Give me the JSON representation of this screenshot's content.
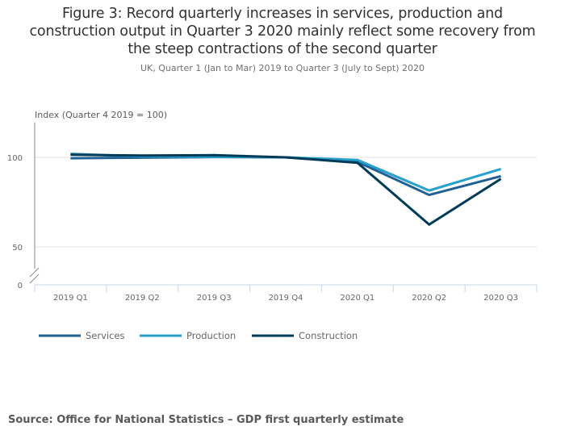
{
  "chart_data": {
    "type": "line",
    "title": "Figure 3: Record quarterly increases in services, production and construction output in Quarter 3 2020 mainly reflect some recovery from the steep contractions of the second quarter",
    "title_lines": [
      "Figure 3: Record quarterly increases in services, production and",
      "construction output in Quarter 3 2020 mainly reflect some recovery from",
      "the steep contractions of the second quarter"
    ],
    "subtitle": "UK, Quarter 1 (Jan to Mar) 2019 to Quarter 3 (July to Sept) 2020",
    "ylabel": "Index (Quarter 4 2019 = 100)",
    "xlabel": "",
    "categories": [
      "2019 Q1",
      "2019 Q2",
      "2019 Q3",
      "2019 Q4",
      "2020 Q1",
      "2020 Q2",
      "2020 Q3"
    ],
    "yticks": [
      0,
      50,
      100
    ],
    "ylim_display": [
      30,
      120
    ],
    "axis_break": true,
    "grid": true,
    "legend_position": "bottom-left",
    "series": [
      {
        "name": "Services",
        "color": "#206095",
        "values": [
          99.5,
          99.8,
          100.2,
          100,
          97.5,
          79.0,
          89.5
        ]
      },
      {
        "name": "Production",
        "color": "#27a0cc",
        "values": [
          102.0,
          100.5,
          100.3,
          100,
          98.5,
          81.5,
          93.5
        ]
      },
      {
        "name": "Construction",
        "color": "#003c57",
        "values": [
          101.5,
          101.0,
          101.2,
          100,
          97.0,
          62.5,
          88.0
        ]
      }
    ]
  },
  "source": "Source: Office for National Statistics – GDP first quarterly estimate"
}
